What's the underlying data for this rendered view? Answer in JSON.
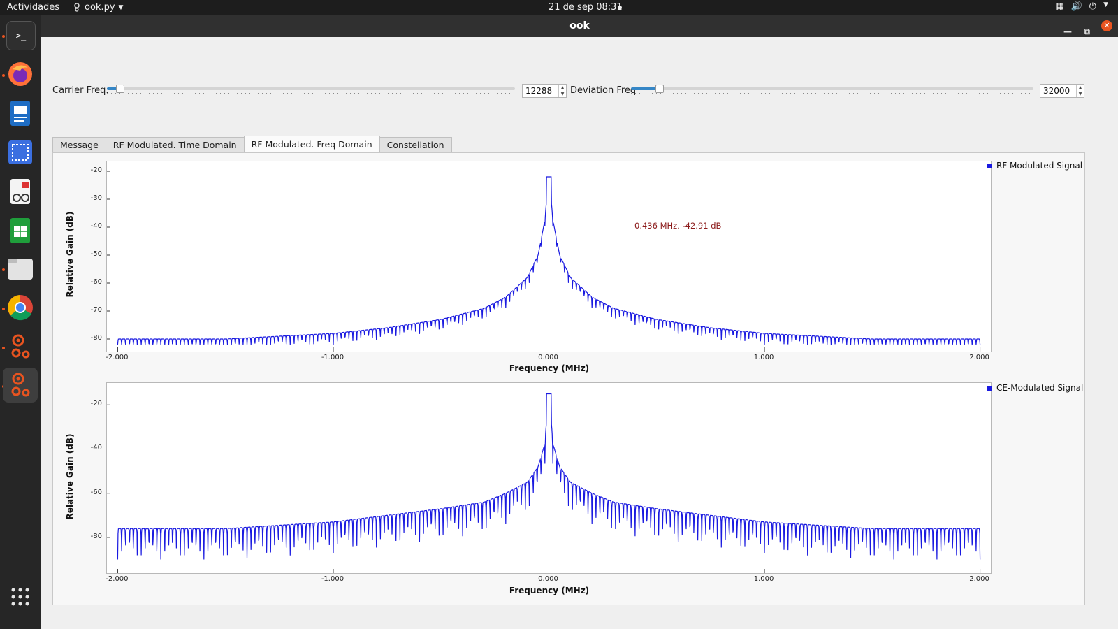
{
  "topbar": {
    "activities": "Actividades",
    "app_menu": "ook.py",
    "clock": "21 de sep  08:31"
  },
  "dock": {
    "apps": [
      "terminal",
      "firefox",
      "writer",
      "screenshot",
      "document-viewer",
      "calc",
      "files",
      "chrome",
      "gnuradio",
      "gnuradio-active"
    ]
  },
  "window": {
    "title": "ook",
    "controls": {
      "carrier_label": "Carrier Freq.",
      "carrier_value": "12288",
      "carrier_level": 0.03,
      "deviation_label": "Deviation Freq",
      "deviation_value": "32000",
      "deviation_level": 0.07
    },
    "tabs": [
      "Message",
      "RF Modulated. Time Domain",
      "RF Modulated. Freq Domain",
      "Constellation"
    ],
    "selected_tab": 2
  },
  "chart_data": [
    {
      "type": "line",
      "title": "",
      "xlabel": "Frequency (MHz)",
      "ylabel": "Relative Gain (dB)",
      "xlim": [
        -2.05,
        2.05
      ],
      "ylim": [
        -82,
        -18
      ],
      "xticks": [
        "-2.000",
        "-1.000",
        "0.000",
        "1.000",
        "2.000"
      ],
      "yticks": [
        "-20",
        "-30",
        "-40",
        "-50",
        "-60",
        "-70",
        "-80"
      ],
      "legend": "top-right",
      "series": [
        {
          "name": "RF Modulated Signal",
          "color": "#1a1ae0",
          "x": [
            -2.0,
            -1.5,
            -1.0,
            -0.75,
            -0.5,
            -0.3,
            -0.2,
            -0.1,
            -0.05,
            -0.02,
            0.0,
            0.02,
            0.05,
            0.1,
            0.2,
            0.3,
            0.5,
            0.75,
            1.0,
            1.5,
            2.0
          ],
          "y": [
            -80,
            -80,
            -78,
            -76,
            -73,
            -69,
            -65,
            -58,
            -50,
            -38,
            -22,
            -38,
            -50,
            -58,
            -65,
            -69,
            -73,
            -76,
            -78,
            -80,
            -80
          ]
        }
      ],
      "annotation": "0.436 MHz, -42.91 dB"
    },
    {
      "type": "line",
      "title": "",
      "xlabel": "Frequency (MHz)",
      "ylabel": "Relative Gain (dB)",
      "xlim": [
        -2.05,
        2.05
      ],
      "ylim": [
        -93,
        -12
      ],
      "xticks": [
        "-2.000",
        "-1.000",
        "0.000",
        "1.000",
        "2.000"
      ],
      "yticks": [
        "-20",
        "-40",
        "-60",
        "-80"
      ],
      "legend": "top-right",
      "series": [
        {
          "name": "CE-Modulated Signal",
          "color": "#1a1ae0",
          "x": [
            -2.0,
            -1.5,
            -1.0,
            -0.75,
            -0.5,
            -0.3,
            -0.2,
            -0.1,
            -0.05,
            -0.02,
            0.0,
            0.02,
            0.05,
            0.1,
            0.2,
            0.3,
            0.5,
            0.75,
            1.0,
            1.5,
            2.0
          ],
          "y": [
            -76,
            -76,
            -73,
            -70,
            -67,
            -64,
            -60,
            -55,
            -48,
            -38,
            -15,
            -38,
            -48,
            -55,
            -60,
            -64,
            -67,
            -70,
            -73,
            -76,
            -76
          ]
        }
      ]
    }
  ]
}
